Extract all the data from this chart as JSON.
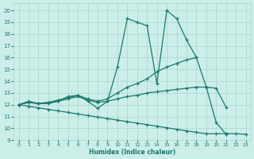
{
  "xlabel": "Humidex (Indice chaleur)",
  "bg_color": "#cceee8",
  "grid_color": "#aad4ce",
  "line_color": "#1a7a6e",
  "xlim": [
    -0.5,
    23.5
  ],
  "ylim": [
    9,
    20.6
  ],
  "xticks": [
    0,
    1,
    2,
    3,
    4,
    5,
    6,
    7,
    8,
    9,
    10,
    11,
    12,
    13,
    14,
    15,
    16,
    17,
    18,
    19,
    20,
    21,
    22,
    23
  ],
  "yticks": [
    9,
    10,
    11,
    12,
    13,
    14,
    15,
    16,
    17,
    18,
    19,
    20
  ],
  "line1_x": [
    0,
    1,
    2,
    3,
    4,
    5,
    6,
    7,
    8,
    9,
    10,
    11,
    12,
    13,
    14,
    15,
    16,
    17,
    18,
    19,
    20,
    21
  ],
  "line1_y": [
    12.0,
    12.3,
    12.1,
    12.2,
    12.3,
    12.7,
    12.8,
    12.3,
    11.7,
    12.3,
    15.2,
    19.3,
    19.0,
    18.7,
    13.8,
    20.0,
    19.3,
    17.5,
    16.0,
    13.5,
    10.5,
    9.5
  ],
  "line2_x": [
    0,
    1,
    2,
    3,
    4,
    5,
    6,
    7,
    8,
    9,
    10,
    11,
    12,
    13,
    14,
    15,
    16,
    17,
    18
  ],
  "line2_y": [
    12.0,
    12.2,
    12.1,
    12.2,
    12.4,
    12.6,
    12.8,
    12.5,
    12.3,
    12.5,
    13.0,
    13.5,
    13.8,
    14.2,
    14.8,
    15.2,
    15.5,
    15.8,
    16.0
  ],
  "line3_x": [
    0,
    1,
    2,
    3,
    4,
    5,
    6,
    7,
    8,
    9,
    10,
    11,
    12,
    13,
    14,
    15,
    16,
    17,
    18,
    19,
    20,
    21
  ],
  "line3_y": [
    12.0,
    12.2,
    12.1,
    12.1,
    12.3,
    12.5,
    12.7,
    12.4,
    12.2,
    12.3,
    12.5,
    12.7,
    12.8,
    13.0,
    13.1,
    13.2,
    13.3,
    13.4,
    13.5,
    13.5,
    13.4,
    11.8
  ],
  "line4_x": [
    0,
    1,
    2,
    3,
    4,
    5,
    6,
    7,
    8,
    9,
    10,
    11,
    12,
    13,
    14,
    15,
    16,
    17,
    18,
    19,
    20,
    21,
    22,
    23
  ],
  "line4_y": [
    12.0,
    11.87,
    11.74,
    11.61,
    11.48,
    11.35,
    11.22,
    11.09,
    10.96,
    10.83,
    10.7,
    10.57,
    10.44,
    10.31,
    10.18,
    10.05,
    9.92,
    9.79,
    9.66,
    9.54,
    9.54,
    9.57,
    9.54,
    9.5
  ]
}
